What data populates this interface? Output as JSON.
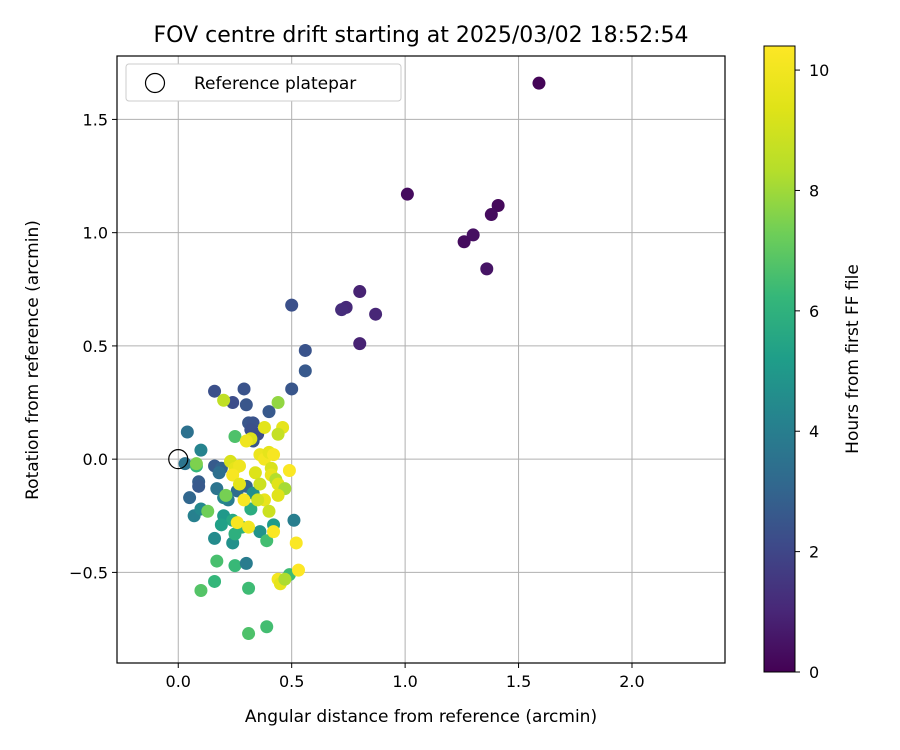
{
  "chart_data": {
    "type": "scatter",
    "title": "FOV centre drift starting at 2025/03/02 18:52:54",
    "xlabel": "Angular distance from reference (arcmin)",
    "ylabel": "Rotation from reference (arcmin)",
    "xlim": [
      -0.27,
      2.41
    ],
    "ylim": [
      -0.9,
      1.78
    ],
    "xticks": [
      0.0,
      0.5,
      1.0,
      1.5,
      2.0
    ],
    "xtick_labels": [
      "0.0",
      "0.5",
      "1.0",
      "1.5",
      "2.0"
    ],
    "yticks": [
      -0.5,
      0.0,
      0.5,
      1.0,
      1.5
    ],
    "ytick_labels": [
      "−0.5",
      "0.0",
      "0.5",
      "1.0",
      "1.5"
    ],
    "grid": true,
    "legend": {
      "label": "Reference platepar",
      "placement": "top-left"
    },
    "reference_point": {
      "x": 0.0,
      "y": 0.0
    },
    "colorbar": {
      "label": "Hours from first FF file",
      "colormap": "viridis",
      "range": [
        0,
        10.4
      ],
      "ticks": [
        0,
        2,
        4,
        6,
        8,
        10
      ],
      "tick_labels": [
        "0",
        "2",
        "4",
        "6",
        "8",
        "10"
      ]
    },
    "series": [
      {
        "columns": [
          "x",
          "y",
          "hours"
        ],
        "points": [
          [
            1.59,
            1.66,
            0.1
          ],
          [
            1.01,
            1.17,
            0.3
          ],
          [
            1.41,
            1.12,
            0.2
          ],
          [
            1.38,
            1.08,
            0.3
          ],
          [
            1.3,
            0.99,
            0.4
          ],
          [
            1.26,
            0.96,
            0.3
          ],
          [
            1.36,
            0.84,
            0.5
          ],
          [
            0.8,
            0.74,
            0.9
          ],
          [
            0.74,
            0.67,
            1.1
          ],
          [
            0.72,
            0.66,
            1.2
          ],
          [
            0.87,
            0.64,
            1.0
          ],
          [
            0.8,
            0.51,
            0.9
          ],
          [
            0.5,
            0.68,
            2.3
          ],
          [
            0.56,
            0.48,
            2.4
          ],
          [
            0.56,
            0.39,
            2.6
          ],
          [
            0.5,
            0.31,
            2.5
          ],
          [
            0.16,
            0.3,
            2.3
          ],
          [
            0.29,
            0.31,
            2.4
          ],
          [
            0.24,
            0.25,
            2.2
          ],
          [
            0.3,
            0.24,
            2.5
          ],
          [
            0.4,
            0.21,
            2.6
          ],
          [
            0.31,
            0.16,
            2.5
          ],
          [
            0.33,
            0.16,
            2.4
          ],
          [
            0.32,
            0.13,
            2.3
          ],
          [
            0.35,
            0.11,
            2.2
          ],
          [
            0.33,
            0.08,
            2.5
          ],
          [
            0.04,
            0.12,
            3.5
          ],
          [
            0.1,
            0.04,
            4.2
          ],
          [
            0.03,
            -0.02,
            3.6
          ],
          [
            0.08,
            -0.03,
            6.2
          ],
          [
            0.16,
            -0.03,
            2.7
          ],
          [
            0.19,
            -0.04,
            3.0
          ],
          [
            0.18,
            -0.06,
            3.4
          ],
          [
            0.05,
            -0.17,
            3.1
          ],
          [
            0.09,
            -0.1,
            2.8
          ],
          [
            0.09,
            -0.12,
            2.6
          ],
          [
            0.17,
            -0.13,
            3.6
          ],
          [
            0.22,
            -0.18,
            3.9
          ],
          [
            0.2,
            -0.17,
            4.3
          ],
          [
            0.26,
            -0.14,
            3.3
          ],
          [
            0.3,
            -0.12,
            3.0
          ],
          [
            0.33,
            -0.15,
            4.6
          ],
          [
            0.07,
            -0.25,
            4.1
          ],
          [
            0.1,
            -0.22,
            4.4
          ],
          [
            0.2,
            -0.25,
            5.0
          ],
          [
            0.24,
            -0.27,
            5.6
          ],
          [
            0.19,
            -0.29,
            5.3
          ],
          [
            0.28,
            -0.3,
            6.0
          ],
          [
            0.32,
            -0.22,
            5.8
          ],
          [
            0.36,
            -0.32,
            4.8
          ],
          [
            0.42,
            -0.29,
            5.1
          ],
          [
            0.51,
            -0.27,
            4.0
          ],
          [
            0.16,
            -0.35,
            4.5
          ],
          [
            0.24,
            -0.37,
            4.7
          ],
          [
            0.25,
            -0.33,
            5.9
          ],
          [
            0.39,
            -0.36,
            6.5
          ],
          [
            0.17,
            -0.45,
            6.6
          ],
          [
            0.25,
            -0.47,
            6.3
          ],
          [
            0.3,
            -0.46,
            3.9
          ],
          [
            0.16,
            -0.54,
            6.2
          ],
          [
            0.1,
            -0.58,
            6.8
          ],
          [
            0.31,
            -0.57,
            6.4
          ],
          [
            0.49,
            -0.51,
            6.4
          ],
          [
            0.39,
            -0.74,
            6.5
          ],
          [
            0.31,
            -0.77,
            6.7
          ],
          [
            0.13,
            -0.23,
            7.3
          ],
          [
            0.21,
            -0.16,
            7.4
          ],
          [
            0.25,
            0.1,
            6.7
          ],
          [
            0.08,
            -0.02,
            7.5
          ],
          [
            0.2,
            0.26,
            8.6
          ],
          [
            0.44,
            0.25,
            7.8
          ],
          [
            0.46,
            0.14,
            9.6
          ],
          [
            0.38,
            0.14,
            9.5
          ],
          [
            0.44,
            0.11,
            8.7
          ],
          [
            0.32,
            0.09,
            9.3
          ],
          [
            0.3,
            0.08,
            9.9
          ],
          [
            0.23,
            -0.01,
            9.2
          ],
          [
            0.25,
            -0.04,
            9.6
          ],
          [
            0.27,
            -0.03,
            9.9
          ],
          [
            0.24,
            -0.07,
            10.2
          ],
          [
            0.27,
            -0.11,
            9.5
          ],
          [
            0.36,
            0.02,
            9.8
          ],
          [
            0.38,
            0.0,
            10.1
          ],
          [
            0.4,
            0.03,
            9.6
          ],
          [
            0.42,
            0.02,
            10.2
          ],
          [
            0.41,
            -0.04,
            9.2
          ],
          [
            0.41,
            -0.07,
            9.7
          ],
          [
            0.43,
            -0.09,
            8.3
          ],
          [
            0.44,
            -0.11,
            9.4
          ],
          [
            0.47,
            -0.13,
            8.1
          ],
          [
            0.34,
            -0.06,
            9.3
          ],
          [
            0.36,
            -0.11,
            8.9
          ],
          [
            0.38,
            -0.18,
            9.7
          ],
          [
            0.35,
            -0.18,
            9.0
          ],
          [
            0.29,
            -0.18,
            10.2
          ],
          [
            0.4,
            -0.23,
            8.9
          ],
          [
            0.44,
            -0.16,
            9.4
          ],
          [
            0.49,
            -0.05,
            10.3
          ],
          [
            0.26,
            -0.28,
            10.2
          ],
          [
            0.31,
            -0.3,
            10.0
          ],
          [
            0.42,
            -0.32,
            10.3
          ],
          [
            0.52,
            -0.37,
            10.3
          ],
          [
            0.53,
            -0.49,
            10.4
          ],
          [
            0.44,
            -0.53,
            10.1
          ],
          [
            0.45,
            -0.55,
            9.6
          ],
          [
            0.47,
            -0.53,
            8.2
          ]
        ]
      }
    ]
  }
}
